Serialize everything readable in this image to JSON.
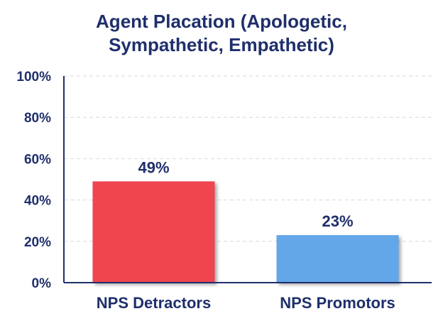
{
  "chart_data": {
    "type": "bar",
    "title_lines": [
      "Agent Placation  (Apologetic,",
      "Sympathetic, Empathetic)"
    ],
    "categories": [
      "NPS Detractors",
      "NPS Promotors"
    ],
    "values": [
      49,
      23
    ],
    "data_labels": [
      "49%",
      "23%"
    ],
    "bar_colors": [
      "#f0454f",
      "#64a7e8"
    ],
    "yticks": [
      "0%",
      "20%",
      "40%",
      "60%",
      "80%",
      "100%"
    ],
    "ylim": [
      0,
      100
    ],
    "grid": true,
    "xlabel": "",
    "ylabel": ""
  },
  "colors": {
    "text": "#1f2f6b",
    "axis": "#1f2f6b",
    "grid": "#d9d9d9"
  }
}
